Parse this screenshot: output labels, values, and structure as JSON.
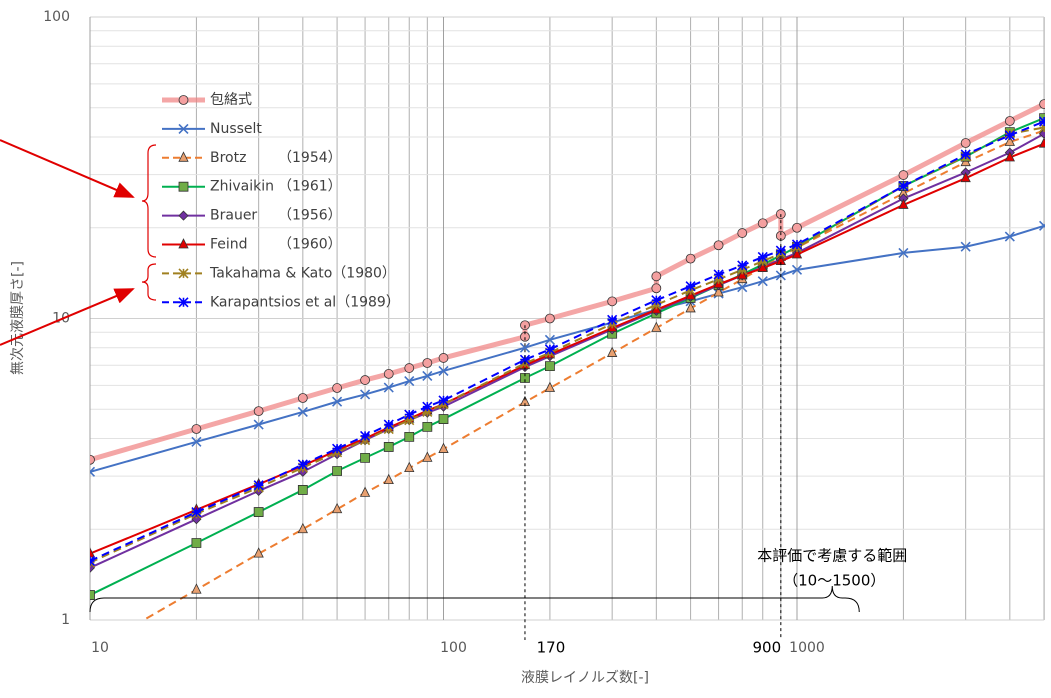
{
  "chart_data": {
    "type": "line",
    "log_x": true,
    "log_y": true,
    "grid": true,
    "xlabel": "液膜レイノルズ数[-]",
    "ylabel": "無次元液膜厚さ[-]",
    "xlim": [
      10,
      5000
    ],
    "ylim": [
      1,
      100
    ],
    "xticks": [
      10,
      100,
      1000
    ],
    "yticks": [
      1,
      10,
      100
    ],
    "markers": [
      170,
      900
    ],
    "range": {
      "from": 10,
      "to": 1500,
      "label": "本評価で考慮する範囲",
      "sublabel": "（10～1500）"
    },
    "series": [
      {
        "name": "包絡式",
        "color": "#f08080",
        "marker": "circle",
        "dash": false,
        "x": [
          10,
          20,
          30,
          40,
          50,
          60,
          70,
          80,
          90,
          100,
          170,
          170,
          200,
          300,
          400,
          400,
          500,
          600,
          700,
          800,
          900,
          900,
          1000,
          2000,
          3000,
          4000,
          5000
        ],
        "values": [
          3.4,
          4.3,
          4.93,
          5.45,
          5.88,
          6.25,
          6.55,
          6.85,
          7.12,
          7.4,
          8.7,
          9.5,
          10.0,
          11.4,
          12.6,
          13.8,
          15.8,
          17.5,
          19.2,
          20.7,
          22.2,
          18.8,
          20.0,
          29.9,
          38.2,
          45.2,
          51.4
        ]
      },
      {
        "name": "Nusselt",
        "color": "#4472c4",
        "marker": "x",
        "dash": false,
        "x": [
          10,
          20,
          30,
          40,
          50,
          60,
          70,
          80,
          90,
          100,
          170,
          200,
          300,
          400,
          500,
          600,
          700,
          800,
          900,
          1000,
          2000,
          3000,
          4000,
          5000
        ],
        "values": [
          3.1,
          3.9,
          4.45,
          4.9,
          5.3,
          5.6,
          5.9,
          6.2,
          6.45,
          6.7,
          8.0,
          8.5,
          9.7,
          10.7,
          11.4,
          12.1,
          12.7,
          13.3,
          13.9,
          14.5,
          16.5,
          17.3,
          18.7,
          20.3
        ]
      },
      {
        "name": "Brotz",
        "year": "（1954）",
        "color": "#ed7d31",
        "marker": "triangle",
        "dash": true,
        "x": [
          10,
          20,
          30,
          40,
          50,
          60,
          70,
          80,
          90,
          100,
          170,
          200,
          300,
          400,
          500,
          600,
          700,
          800,
          900,
          1000,
          2000,
          3000,
          4000,
          5000
        ],
        "values": [
          0.79,
          1.26,
          1.66,
          2.0,
          2.33,
          2.64,
          2.91,
          3.19,
          3.45,
          3.69,
          5.28,
          5.88,
          7.68,
          9.3,
          10.8,
          12.2,
          13.5,
          14.8,
          16.0,
          17.2,
          26.0,
          33.0,
          38.5,
          42.0
        ]
      },
      {
        "name": "Zhivaikin",
        "year": "（1961）",
        "color": "#00b050",
        "marker": "square",
        "dash": false,
        "x": [
          10,
          20,
          30,
          40,
          50,
          60,
          70,
          80,
          90,
          100,
          170,
          200,
          300,
          400,
          500,
          600,
          700,
          800,
          900,
          1000,
          2000,
          3000,
          4000,
          5000
        ],
        "values": [
          1.21,
          1.8,
          2.28,
          2.7,
          3.12,
          3.45,
          3.75,
          4.05,
          4.37,
          4.64,
          6.35,
          6.95,
          8.9,
          10.4,
          11.7,
          12.9,
          14.0,
          15.1,
          16.2,
          17.3,
          27.5,
          34.4,
          41.5,
          46.2
        ]
      },
      {
        "name": "Brauer",
        "year": "（1956）",
        "color": "#7030a0",
        "marker": "diamond",
        "dash": false,
        "x": [
          10,
          20,
          30,
          40,
          50,
          60,
          70,
          80,
          90,
          100,
          170,
          200,
          300,
          400,
          500,
          600,
          700,
          800,
          900,
          1000,
          2000,
          3000,
          4000,
          5000
        ],
        "values": [
          1.49,
          2.16,
          2.68,
          3.1,
          3.55,
          3.95,
          4.3,
          4.6,
          4.87,
          5.1,
          6.9,
          7.5,
          9.2,
          10.6,
          11.8,
          12.9,
          13.9,
          14.8,
          15.7,
          16.5,
          25.0,
          30.5,
          35.5,
          41.0
        ]
      },
      {
        "name": "Feind",
        "year": "（1960）",
        "color": "#e00000",
        "marker": "triangle",
        "dash": false,
        "x": [
          10,
          20,
          30,
          40,
          50,
          60,
          70,
          80,
          90,
          100,
          170,
          200,
          300,
          400,
          500,
          600,
          700,
          800,
          900,
          1000,
          2000,
          3000,
          4000,
          5000
        ],
        "values": [
          1.66,
          2.32,
          2.82,
          3.25,
          3.65,
          4.0,
          4.35,
          4.65,
          4.95,
          5.2,
          7.0,
          7.6,
          9.3,
          10.7,
          11.9,
          13.0,
          13.9,
          14.7,
          15.5,
          16.3,
          23.8,
          29.2,
          34.2,
          38.0
        ]
      },
      {
        "name": "Takahama & Kato（1980）",
        "color": "#a08020",
        "marker": "star",
        "dash": true,
        "x": [
          10,
          20,
          30,
          40,
          50,
          60,
          70,
          80,
          90,
          100,
          170,
          200,
          300,
          400,
          500,
          600,
          700,
          800,
          900,
          1000,
          2000,
          3000,
          4000,
          5000
        ],
        "values": [
          1.55,
          2.25,
          2.75,
          3.2,
          3.6,
          3.95,
          4.3,
          4.6,
          4.9,
          5.2,
          7.1,
          7.7,
          9.6,
          11.1,
          12.4,
          13.5,
          14.5,
          15.5,
          16.4,
          17.2,
          27.5,
          34.5,
          41.0,
          43.0
        ]
      },
      {
        "name": "Karapantsios et al（1989）",
        "color": "#0000ff",
        "marker": "star",
        "dash": true,
        "x": [
          10,
          20,
          30,
          40,
          50,
          60,
          70,
          80,
          90,
          100,
          170,
          200,
          300,
          400,
          500,
          600,
          700,
          800,
          900,
          1000,
          2000,
          3000,
          4000,
          5000
        ],
        "values": [
          1.57,
          2.28,
          2.8,
          3.28,
          3.7,
          4.08,
          4.45,
          4.8,
          5.1,
          5.35,
          7.3,
          7.9,
          9.9,
          11.5,
          12.8,
          14.0,
          15.0,
          16.0,
          16.8,
          17.6,
          27.5,
          35.0,
          40.5,
          45.0
        ]
      }
    ]
  }
}
